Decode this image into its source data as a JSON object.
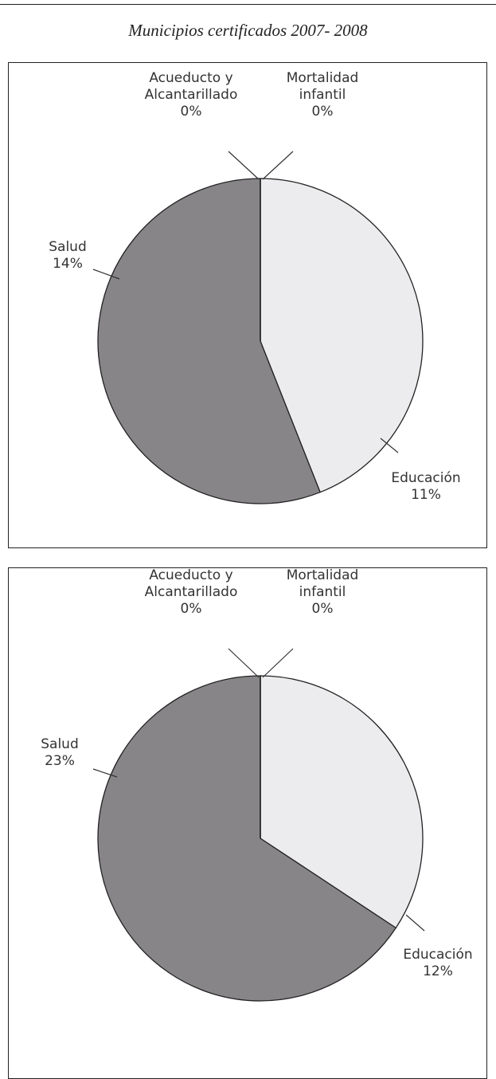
{
  "title": "Municipios certificados 2007- 2008",
  "chart_data": [
    {
      "type": "pie",
      "categories": [
        "Educación",
        "Salud",
        "Acueducto y Alcantarillado",
        "Mortalidad infantil"
      ],
      "values": [
        11,
        14,
        0,
        0
      ],
      "value_labels": [
        "11%",
        "14%",
        "0%",
        "0%"
      ],
      "colors": [
        "#ececee",
        "#878588",
        "#878588",
        "#878588"
      ]
    },
    {
      "type": "pie",
      "categories": [
        "Educación",
        "Salud",
        "Acueducto y Alcantarillado",
        "Mortalidad infantil"
      ],
      "values": [
        12,
        23,
        0,
        0
      ],
      "value_labels": [
        "12%",
        "23%",
        "0%",
        "0%"
      ],
      "colors": [
        "#ececee",
        "#878588",
        "#878588",
        "#878588"
      ]
    }
  ]
}
